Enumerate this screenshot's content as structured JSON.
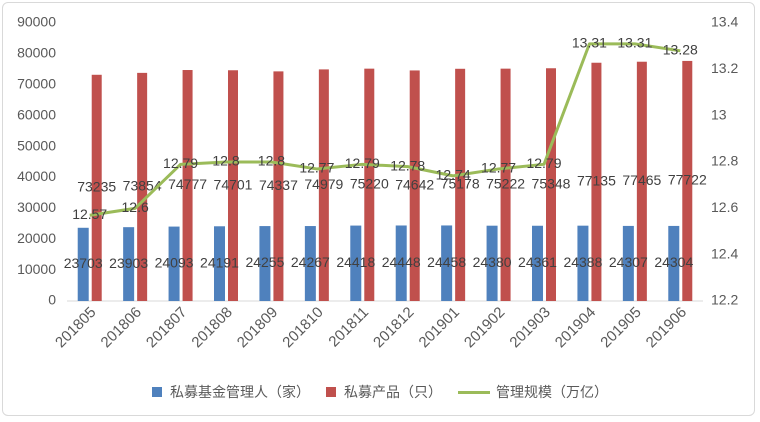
{
  "chart_data": {
    "type": "bar",
    "categories": [
      "201805",
      "201806",
      "201807",
      "201808",
      "201809",
      "201810",
      "201811",
      "201812",
      "201901",
      "201902",
      "201903",
      "201904",
      "201905",
      "201906"
    ],
    "series": [
      {
        "name": "私募基金管理人（家）",
        "type": "bar",
        "axis": "left",
        "color": "#4F81BD",
        "values": [
          23703,
          23903,
          24093,
          24191,
          24255,
          24267,
          24418,
          24448,
          24458,
          24380,
          24361,
          24388,
          24307,
          24304
        ]
      },
      {
        "name": "私募产品（只）",
        "type": "bar",
        "axis": "left",
        "color": "#C0504D",
        "values": [
          73235,
          73854,
          74777,
          74701,
          74337,
          74979,
          75220,
          74642,
          75178,
          75222,
          75348,
          77135,
          77465,
          77722
        ]
      },
      {
        "name": "管理规模（万亿）",
        "type": "line",
        "axis": "right",
        "color": "#9BBB59",
        "values": [
          12.57,
          12.6,
          12.79,
          12.8,
          12.8,
          12.77,
          12.79,
          12.78,
          12.74,
          12.77,
          12.79,
          13.31,
          13.31,
          13.28
        ]
      }
    ],
    "left_axis": {
      "min": 0,
      "max": 90000,
      "ticks": [
        0,
        10000,
        20000,
        30000,
        40000,
        50000,
        60000,
        70000,
        80000,
        90000
      ]
    },
    "right_axis": {
      "min": 12.2,
      "max": 13.4,
      "ticks": [
        12.2,
        12.4,
        12.6,
        12.8,
        13,
        13.2,
        13.4
      ]
    },
    "data_labels": true,
    "grid": false,
    "legend_position": "bottom"
  }
}
